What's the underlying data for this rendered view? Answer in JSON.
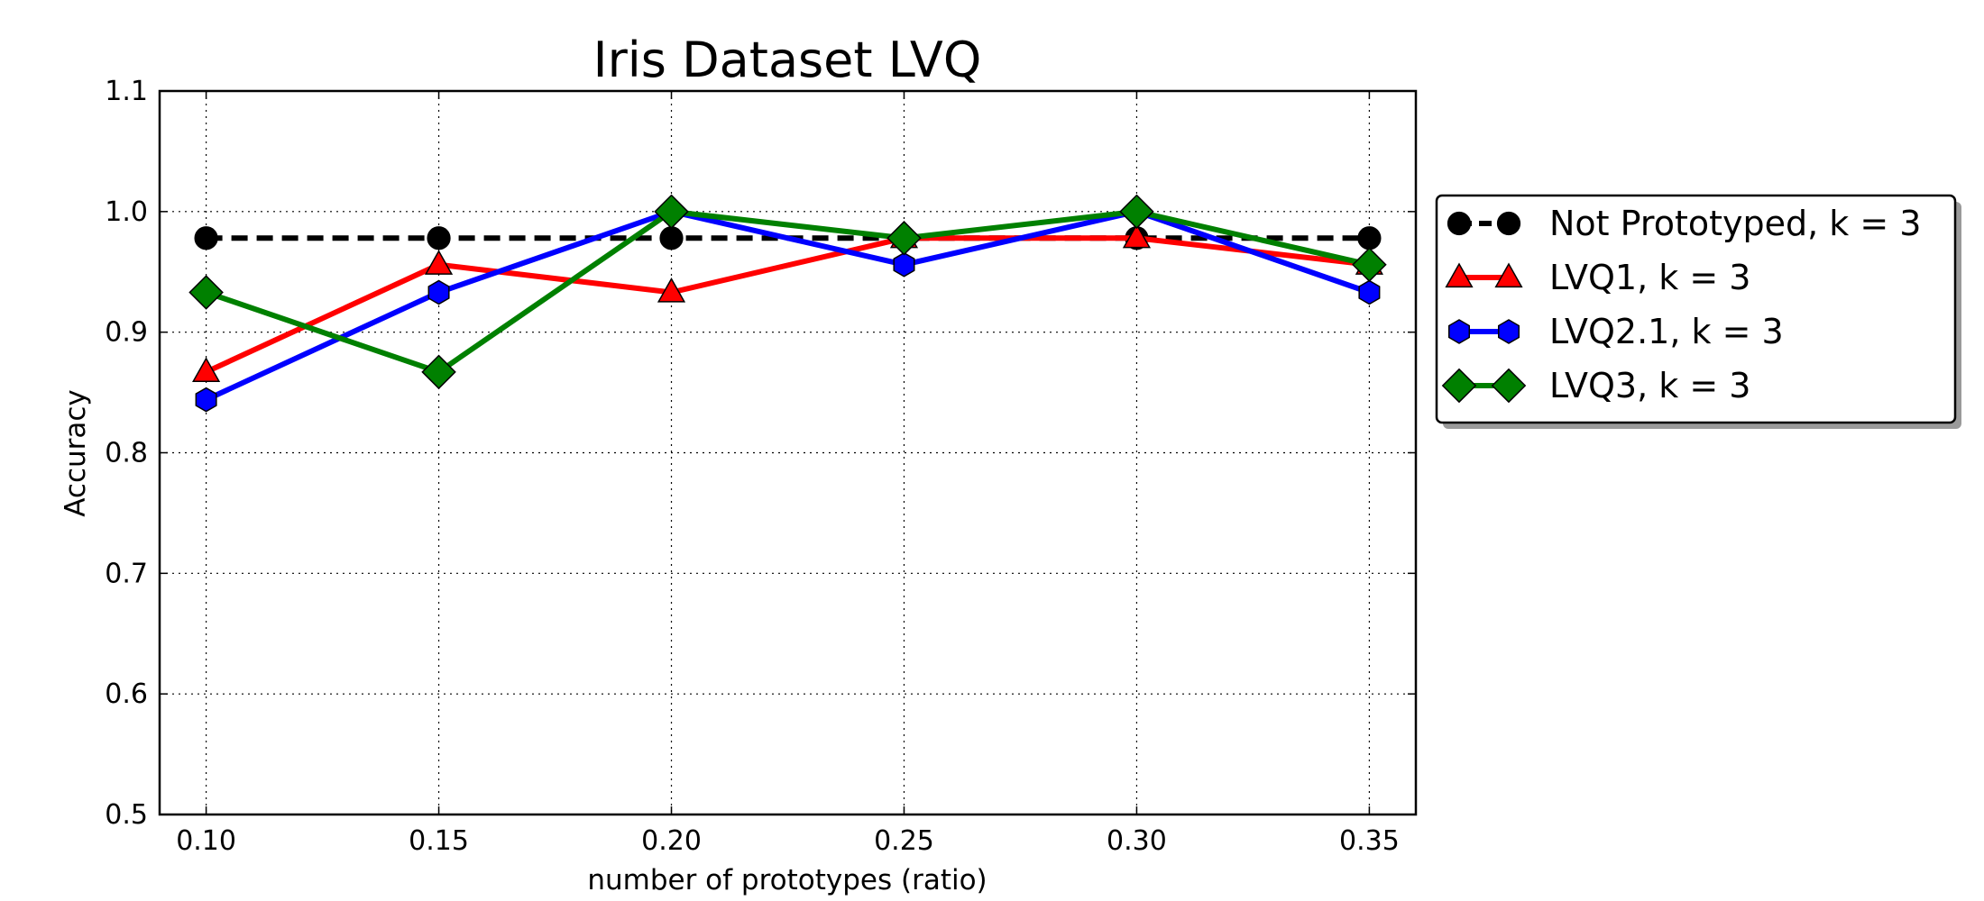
{
  "chart_data": {
    "type": "line",
    "title": "Iris Dataset LVQ",
    "xlabel": "number of prototypes (ratio)",
    "ylabel": "Accuracy",
    "xlim": [
      0.09,
      0.36
    ],
    "ylim": [
      0.5,
      1.1
    ],
    "xticks": [
      0.1,
      0.15,
      0.2,
      0.25,
      0.3,
      0.35
    ],
    "xtick_labels": [
      "0.10",
      "0.15",
      "0.20",
      "0.25",
      "0.30",
      "0.35"
    ],
    "yticks": [
      0.5,
      0.6,
      0.7,
      0.8,
      0.9,
      1.0,
      1.1
    ],
    "ytick_labels": [
      "0.5",
      "0.6",
      "0.7",
      "0.8",
      "0.9",
      "1.0",
      "1.1"
    ],
    "grid": true,
    "legend_position": "outside right, top",
    "x": [
      0.1,
      0.15,
      0.2,
      0.25,
      0.3,
      0.35
    ],
    "series": [
      {
        "name": "Not Prototyped, k = 3",
        "color": "#000000",
        "marker": "circle",
        "dashed": true,
        "values": [
          0.978,
          0.978,
          0.978,
          0.978,
          0.978,
          0.978
        ]
      },
      {
        "name": "LVQ1, k = 3",
        "color": "#ff0000",
        "marker": "triangle",
        "dashed": false,
        "values": [
          0.867,
          0.956,
          0.933,
          0.978,
          0.978,
          0.956
        ]
      },
      {
        "name": "LVQ2.1, k = 3",
        "color": "#0000ff",
        "marker": "hexagon",
        "dashed": false,
        "values": [
          0.844,
          0.933,
          1.0,
          0.956,
          1.0,
          0.933
        ]
      },
      {
        "name": "LVQ3, k = 3",
        "color": "#008000",
        "marker": "diamond",
        "dashed": false,
        "values": [
          0.933,
          0.867,
          1.0,
          0.978,
          1.0,
          0.956
        ]
      }
    ]
  }
}
